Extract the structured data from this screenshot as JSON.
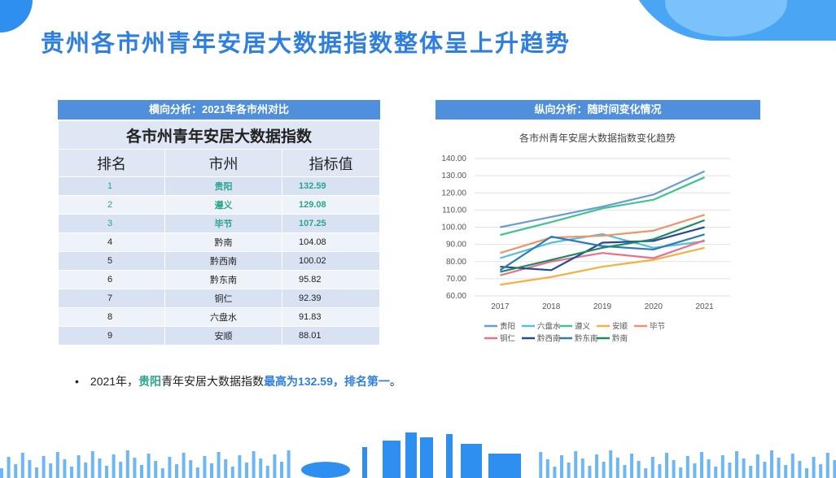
{
  "page": {
    "title": "贵州各市州青年安居大数据指数整体呈上升趋势"
  },
  "left_panel": {
    "header": "横向分析：2021年各市州对比",
    "table_caption": "各市州青年安居大数据指数",
    "columns": [
      "排名",
      "市州",
      "指标值"
    ],
    "rows": [
      {
        "rank": "1",
        "city": "贵阳",
        "value": "132.59"
      },
      {
        "rank": "2",
        "city": "遵义",
        "value": "129.08"
      },
      {
        "rank": "3",
        "city": "毕节",
        "value": "107.25"
      },
      {
        "rank": "4",
        "city": "黔南",
        "value": "104.08"
      },
      {
        "rank": "5",
        "city": "黔西南",
        "value": "100.02"
      },
      {
        "rank": "6",
        "city": "黔东南",
        "value": "95.82"
      },
      {
        "rank": "7",
        "city": "铜仁",
        "value": "92.39"
      },
      {
        "rank": "8",
        "city": "六盘水",
        "value": "91.83"
      },
      {
        "rank": "9",
        "city": "安顺",
        "value": "88.01"
      }
    ]
  },
  "right_panel": {
    "header": "纵向分析：随时间变化情况"
  },
  "chart_data": {
    "type": "line",
    "title": "各市州青年安居大数据指数变化趋势",
    "x": [
      "2017",
      "2018",
      "2019",
      "2020",
      "2021"
    ],
    "ylim": [
      60,
      140
    ],
    "yticks": [
      "60.00",
      "70.00",
      "80.00",
      "90.00",
      "100.00",
      "110.00",
      "120.00",
      "130.00",
      "140.00"
    ],
    "grid": true,
    "legend_position": "bottom",
    "series": [
      {
        "name": "贵阳",
        "color": "#6b9ad8",
        "values": [
          100,
          106,
          112,
          119,
          132.59
        ]
      },
      {
        "name": "六盘水",
        "color": "#56bfdc",
        "values": [
          82,
          91,
          96,
          88,
          91.83
        ]
      },
      {
        "name": "遵义",
        "color": "#3ec48e",
        "values": [
          95.5,
          103,
          111,
          116,
          129.08
        ]
      },
      {
        "name": "安顺",
        "color": "#f5b041",
        "values": [
          66.5,
          71,
          77,
          81,
          88.01
        ]
      },
      {
        "name": "毕节",
        "color": "#f0926a",
        "values": [
          85,
          94,
          95,
          98,
          107.25
        ]
      },
      {
        "name": "铜仁",
        "color": "#e8708a",
        "values": [
          72,
          80,
          85,
          82,
          92.39
        ]
      },
      {
        "name": "黔西南",
        "color": "#25489e",
        "values": [
          77,
          75,
          91,
          92,
          100.02
        ]
      },
      {
        "name": "黔东南",
        "color": "#2c7bb6",
        "values": [
          75,
          94.5,
          89,
          87,
          95.82
        ]
      },
      {
        "name": "黔南",
        "color": "#1f8a5e",
        "values": [
          74,
          81,
          88,
          93,
          104.08
        ]
      }
    ]
  },
  "summary": {
    "year": "2021年，",
    "city": "贵阳",
    "text_mid": "青年安居大数据指数",
    "text_high": "最高为132.59，排名第一",
    "text_end": "。"
  },
  "colors": {
    "accent": "#2f7fe0",
    "header_bg": "#4f8fdb",
    "highlight_green": "#2aa58c"
  }
}
